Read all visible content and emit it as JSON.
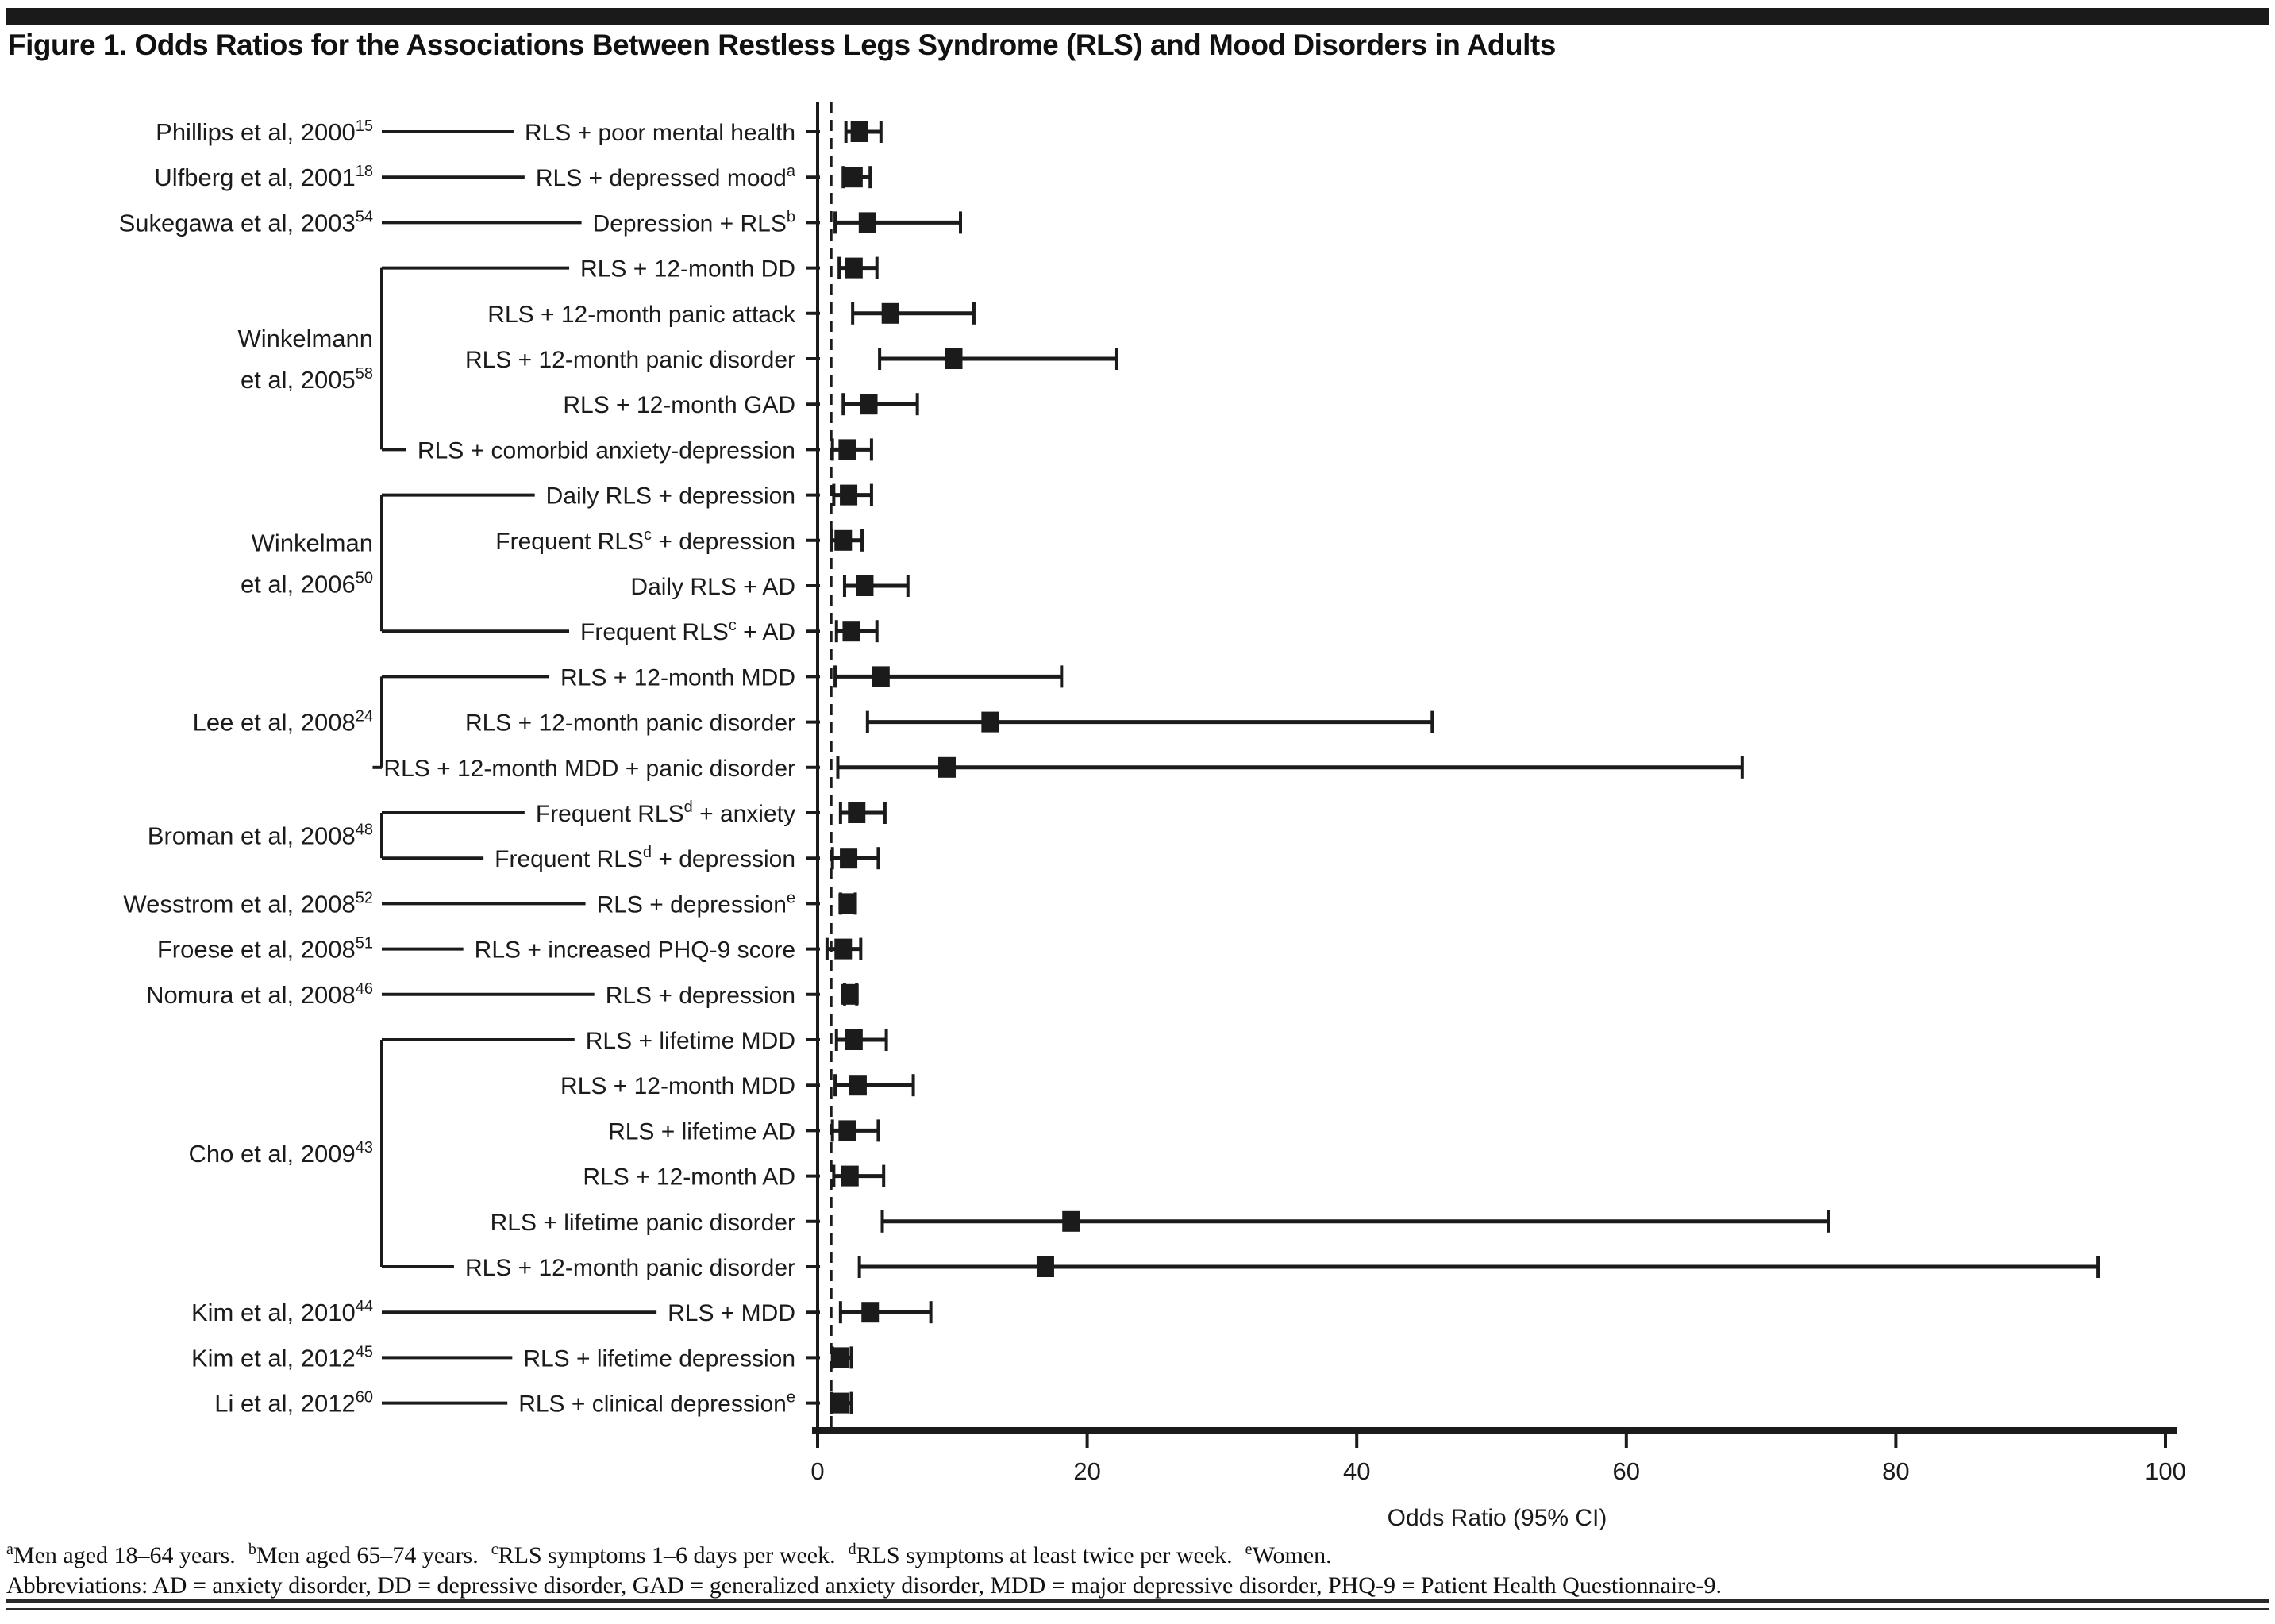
{
  "figure": {
    "title": "Figure 1. Odds Ratios for the Associations Between Restless Legs Syndrome (RLS) and Mood Disorders in Adults"
  },
  "chart_data": {
    "type": "forest",
    "title": "Odds Ratios for the Associations Between Restless Legs Syndrome (RLS) and Mood Disorders in Adults",
    "xlabel": "Odds Ratio (95% CI)",
    "xlim": [
      0,
      100
    ],
    "x_ticks": [
      0,
      20,
      40,
      60,
      80,
      100
    ],
    "reference_line_or": 1,
    "marker_color": "#1b1b1b",
    "groups": [
      {
        "study": [
          "Phillips et al, 2000"
        ],
        "ref": "15",
        "rows": [
          {
            "parts": [
              {
                "t": "RLS + poor mental health"
              }
            ],
            "or": 3.1,
            "lo": 2.1,
            "hi": 4.7
          }
        ]
      },
      {
        "study": [
          "Ulfberg et al, 2001"
        ],
        "ref": "18",
        "rows": [
          {
            "parts": [
              {
                "t": "RLS + depressed mood"
              },
              {
                "t": "a",
                "sup": true
              }
            ],
            "or": 2.7,
            "lo": 1.9,
            "hi": 3.9
          }
        ]
      },
      {
        "study": [
          "Sukegawa et al, 2003"
        ],
        "ref": "54",
        "rows": [
          {
            "parts": [
              {
                "t": "Depression + RLS"
              },
              {
                "t": "b",
                "sup": true
              }
            ],
            "or": 3.7,
            "lo": 1.3,
            "hi": 10.6
          }
        ]
      },
      {
        "study": [
          "Winkelmann",
          "et al, 2005"
        ],
        "ref": "58",
        "rows": [
          {
            "parts": [
              {
                "t": "RLS + 12-month DD"
              }
            ],
            "or": 2.7,
            "lo": 1.6,
            "hi": 4.4
          },
          {
            "parts": [
              {
                "t": "RLS + 12-month panic attack"
              }
            ],
            "or": 5.4,
            "lo": 2.6,
            "hi": 11.6
          },
          {
            "parts": [
              {
                "t": "RLS + 12-month panic disorder"
              }
            ],
            "or": 10.1,
            "lo": 4.6,
            "hi": 22.2
          },
          {
            "parts": [
              {
                "t": "RLS + 12-month GAD"
              }
            ],
            "or": 3.8,
            "lo": 1.9,
            "hi": 7.4
          },
          {
            "parts": [
              {
                "t": "RLS + comorbid anxiety-depression"
              }
            ],
            "or": 2.2,
            "lo": 1.1,
            "hi": 4.0
          }
        ]
      },
      {
        "study": [
          "Winkelman",
          "et al, 2006"
        ],
        "ref": "50",
        "rows": [
          {
            "parts": [
              {
                "t": "Daily RLS + depression"
              }
            ],
            "or": 2.3,
            "lo": 1.2,
            "hi": 4.0
          },
          {
            "parts": [
              {
                "t": "Frequent RLS"
              },
              {
                "t": "c",
                "sup": true
              },
              {
                "t": " + depression"
              }
            ],
            "or": 1.9,
            "lo": 1.0,
            "hi": 3.3
          },
          {
            "parts": [
              {
                "t": "Daily RLS + AD"
              }
            ],
            "or": 3.5,
            "lo": 2.0,
            "hi": 6.7
          },
          {
            "parts": [
              {
                "t": "Frequent RLS"
              },
              {
                "t": "c",
                "sup": true
              },
              {
                "t": " + AD"
              }
            ],
            "or": 2.5,
            "lo": 1.4,
            "hi": 4.4
          }
        ]
      },
      {
        "study": [
          "Lee et al, 2008"
        ],
        "ref": "24",
        "rows": [
          {
            "parts": [
              {
                "t": "RLS + 12-month MDD"
              }
            ],
            "or": 4.7,
            "lo": 1.3,
            "hi": 18.1
          },
          {
            "parts": [
              {
                "t": "RLS + 12-month panic disorder"
              }
            ],
            "or": 12.8,
            "lo": 3.7,
            "hi": 45.6
          },
          {
            "parts": [
              {
                "t": "RLS + 12-month MDD + panic disorder"
              }
            ],
            "or": 9.6,
            "lo": 1.5,
            "hi": 68.6
          }
        ]
      },
      {
        "study": [
          "Broman et al, 2008"
        ],
        "ref": "48",
        "rows": [
          {
            "parts": [
              {
                "t": "Frequent RLS"
              },
              {
                "t": "d",
                "sup": true
              },
              {
                "t": " + anxiety"
              }
            ],
            "or": 2.9,
            "lo": 1.7,
            "hi": 5.0
          },
          {
            "parts": [
              {
                "t": "Frequent RLS"
              },
              {
                "t": "d",
                "sup": true
              },
              {
                "t": " + depression"
              }
            ],
            "or": 2.3,
            "lo": 1.1,
            "hi": 4.5
          }
        ]
      },
      {
        "study": [
          "Wesstrom et al, 2008"
        ],
        "ref": "52",
        "rows": [
          {
            "parts": [
              {
                "t": "RLS + depression"
              },
              {
                "t": "e",
                "sup": true
              }
            ],
            "or": 2.2,
            "lo": 1.7,
            "hi": 2.8
          }
        ]
      },
      {
        "study": [
          "Froese et al, 2008"
        ],
        "ref": "51",
        "rows": [
          {
            "parts": [
              {
                "t": "RLS + increased PHQ-9 score"
              }
            ],
            "or": 1.9,
            "lo": 0.7,
            "hi": 3.2
          }
        ]
      },
      {
        "study": [
          "Nomura et al, 2008"
        ],
        "ref": "46",
        "rows": [
          {
            "parts": [
              {
                "t": "RLS + depression"
              }
            ],
            "or": 2.4,
            "lo": 2.0,
            "hi": 2.9
          }
        ]
      },
      {
        "study": [
          "Cho et al, 2009"
        ],
        "ref": "43",
        "rows": [
          {
            "parts": [
              {
                "t": "RLS + lifetime MDD"
              }
            ],
            "or": 2.7,
            "lo": 1.4,
            "hi": 5.1
          },
          {
            "parts": [
              {
                "t": "RLS + 12-month MDD"
              }
            ],
            "or": 3.0,
            "lo": 1.3,
            "hi": 7.1
          },
          {
            "parts": [
              {
                "t": "RLS + lifetime AD"
              }
            ],
            "or": 2.2,
            "lo": 1.1,
            "hi": 4.5
          },
          {
            "parts": [
              {
                "t": "RLS + 12-month AD"
              }
            ],
            "or": 2.4,
            "lo": 1.2,
            "hi": 4.9
          },
          {
            "parts": [
              {
                "t": "RLS + lifetime panic disorder"
              }
            ],
            "or": 18.8,
            "lo": 4.8,
            "hi": 75.0
          },
          {
            "parts": [
              {
                "t": "RLS + 12-month panic disorder"
              }
            ],
            "or": 16.9,
            "lo": 3.1,
            "hi": 95.0
          }
        ]
      },
      {
        "study": [
          "Kim et al, 2010"
        ],
        "ref": "44",
        "rows": [
          {
            "parts": [
              {
                "t": "RLS + MDD"
              }
            ],
            "or": 3.9,
            "lo": 1.7,
            "hi": 8.4
          }
        ]
      },
      {
        "study": [
          "Kim et al, 2012"
        ],
        "ref": "45",
        "rows": [
          {
            "parts": [
              {
                "t": "RLS + lifetime depression"
              }
            ],
            "or": 1.7,
            "lo": 1.1,
            "hi": 2.5
          }
        ]
      },
      {
        "study": [
          "Li et al, 2012"
        ],
        "ref": "60",
        "rows": [
          {
            "parts": [
              {
                "t": "RLS + clinical depression"
              },
              {
                "t": "e",
                "sup": true
              }
            ],
            "or": 1.7,
            "lo": 1.0,
            "hi": 2.5
          }
        ]
      }
    ]
  },
  "footnotes": {
    "line1": [
      {
        "t": "a",
        "sup": true
      },
      {
        "t": "Men aged 18–64 years."
      },
      {
        "t": "b",
        "sup": true
      },
      {
        "t": "Men aged 65–74 years."
      },
      {
        "t": "c",
        "sup": true
      },
      {
        "t": "RLS symptoms 1–6 days per week."
      },
      {
        "t": "d",
        "sup": true
      },
      {
        "t": "RLS symptoms at least twice per week."
      },
      {
        "t": "e",
        "sup": true
      },
      {
        "t": "Women."
      }
    ],
    "line2": "Abbreviations: AD = anxiety disorder, DD = depressive disorder, GAD = generalized anxiety disorder, MDD = major depressive disorder, PHQ-9 = Patient Health Questionnaire-9."
  }
}
